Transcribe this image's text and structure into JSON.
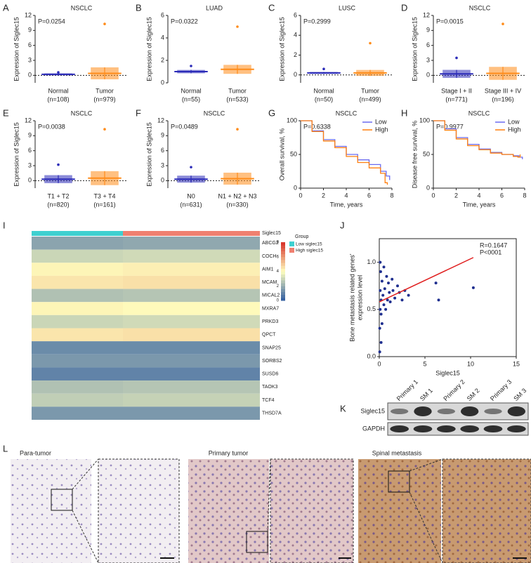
{
  "chart_data": [
    {
      "panel": "A",
      "type": "dotplot",
      "title": "NSCLC",
      "p_value": "P=0.0254",
      "ylabel": "Expression of Siglec15",
      "ylim": [
        -1.5,
        12
      ],
      "yticks": [
        0,
        3,
        6,
        9,
        12
      ],
      "refline": 0,
      "groups": [
        {
          "name": "Normal",
          "n_label": "(n=108)",
          "color": "#2b2bb8",
          "mean": 0.2,
          "sd": 0.2,
          "max": 0.6
        },
        {
          "name": "Tumor",
          "n_label": "(n=979)",
          "color": "#ff8c1a",
          "mean": 0.4,
          "sd": 1.2,
          "max": 10.3
        }
      ]
    },
    {
      "panel": "B",
      "type": "dotplot",
      "title": "LUAD",
      "p_value": "P=0.0322",
      "ylabel": "Expression of Siglec15",
      "ylim": [
        0,
        6
      ],
      "yticks": [
        0,
        2,
        4,
        6
      ],
      "groups": [
        {
          "name": "Normal",
          "n_label": "(n=55)",
          "color": "#2b2bb8",
          "mean": 1.0,
          "sd": 0.15,
          "max": 1.5
        },
        {
          "name": "Tumor",
          "n_label": "(n=533)",
          "color": "#ff8c1a",
          "mean": 1.2,
          "sd": 0.4,
          "max": 5.0
        }
      ]
    },
    {
      "panel": "C",
      "type": "dotplot",
      "title": "LUSC",
      "p_value": "P=0.2999",
      "ylabel": "Expression of Siglec15",
      "ylim": [
        -0.8,
        6
      ],
      "yticks": [
        0,
        2,
        4,
        6
      ],
      "refline": 0,
      "groups": [
        {
          "name": "Normal",
          "n_label": "(n=50)",
          "color": "#2b2bb8",
          "mean": 0.2,
          "sd": 0.1,
          "max": 0.6
        },
        {
          "name": "Tumor",
          "n_label": "(n=499)",
          "color": "#ff8c1a",
          "mean": 0.2,
          "sd": 0.3,
          "max": 3.2
        }
      ]
    },
    {
      "panel": "D",
      "type": "dotplot",
      "title": "NSCLC",
      "p_value": "P=0.0015",
      "ylabel": "Expression of Siglec15",
      "ylim": [
        -1.5,
        12
      ],
      "yticks": [
        0,
        3,
        6,
        9,
        12
      ],
      "refline": 0,
      "groups": [
        {
          "name": "Stage I + II",
          "n_label": "(n=771)",
          "color": "#2b2bb8",
          "mean": 0.3,
          "sd": 0.8,
          "max": 3.5
        },
        {
          "name": "Stage III + IV",
          "n_label": "(n=196)",
          "color": "#ff8c1a",
          "mean": 0.4,
          "sd": 1.3,
          "max": 10.3
        }
      ]
    },
    {
      "panel": "E",
      "type": "dotplot",
      "title": "NSCLC",
      "p_value": "P=0.0038",
      "ylabel": "Expression of Siglec15",
      "ylim": [
        -1.5,
        12
      ],
      "yticks": [
        0,
        3,
        6,
        9,
        12
      ],
      "refline": 0,
      "groups": [
        {
          "name": "T1 + T2",
          "n_label": "(n=820)",
          "color": "#2b2bb8",
          "mean": 0.3,
          "sd": 0.8,
          "max": 3.2
        },
        {
          "name": "T3 + T4",
          "n_label": "(n=161)",
          "color": "#ff8c1a",
          "mean": 0.5,
          "sd": 1.4,
          "max": 10.3
        }
      ]
    },
    {
      "panel": "F",
      "type": "dotplot",
      "title": "NSCLC",
      "p_value": "P=0.0489",
      "ylabel": "Expression of Siglec15",
      "ylim": [
        -1.5,
        12
      ],
      "yticks": [
        0,
        3,
        6,
        9,
        12
      ],
      "refline": 0,
      "groups": [
        {
          "name": "N0",
          "n_label": "(n=631)",
          "color": "#2b2bb8",
          "mean": 0.3,
          "sd": 0.7,
          "max": 2.7
        },
        {
          "name": "N1 + N2 + N3",
          "n_label": "(n=330)",
          "color": "#ff8c1a",
          "mean": 0.4,
          "sd": 1.2,
          "max": 10.3
        }
      ]
    },
    {
      "panel": "G",
      "type": "survival",
      "title": "NSCLC",
      "p_value": "P=0.6338",
      "ylabel": "Overall survival, %",
      "xlabel": "Time, years",
      "xlim": [
        0,
        8
      ],
      "xticks": [
        0,
        2,
        4,
        6,
        8
      ],
      "ylim": [
        0,
        100
      ],
      "yticks": [
        0,
        50,
        100
      ],
      "series": [
        {
          "name": "Low",
          "color": "#6b6bf0",
          "x": [
            0,
            1,
            2,
            3,
            4,
            5,
            6,
            7,
            7.5,
            7.8
          ],
          "values": [
            100,
            85,
            72,
            62,
            50,
            42,
            35,
            25,
            18,
            12
          ]
        },
        {
          "name": "High",
          "color": "#ff7f0e",
          "x": [
            0,
            1,
            2,
            3,
            4,
            5,
            6,
            7,
            7.4,
            7.6
          ],
          "values": [
            100,
            84,
            70,
            60,
            47,
            38,
            30,
            22,
            8,
            5
          ]
        }
      ]
    },
    {
      "panel": "H",
      "type": "survival",
      "title": "NSCLC",
      "p_value": "P=0.9977",
      "ylabel": "Disease free survival, %",
      "xlabel": "Time, years",
      "xlim": [
        0,
        8
      ],
      "xticks": [
        0,
        2,
        4,
        6,
        8
      ],
      "ylim": [
        0,
        100
      ],
      "yticks": [
        0,
        50,
        100
      ],
      "series": [
        {
          "name": "Low",
          "color": "#6b6bf0",
          "x": [
            0,
            1,
            2,
            3,
            4,
            5,
            6,
            7,
            7.5,
            7.8
          ],
          "values": [
            100,
            88,
            75,
            65,
            58,
            53,
            50,
            48,
            46,
            43
          ]
        },
        {
          "name": "High",
          "color": "#ff7f0e",
          "x": [
            0,
            1,
            2,
            3,
            4,
            5,
            6,
            7,
            7.4,
            7.6
          ],
          "values": [
            100,
            86,
            73,
            63,
            57,
            52,
            50,
            47,
            46,
            50
          ]
        }
      ]
    },
    {
      "panel": "I",
      "type": "heatmap",
      "annotation_label": "Siglec15",
      "legend_title": "Group",
      "clim": [
        0,
        8
      ],
      "cticks": [
        0,
        2,
        4,
        6,
        8
      ],
      "groups": [
        {
          "name": "Low siglec15",
          "color": "#3fd0d0"
        },
        {
          "name": "High siglec15",
          "color": "#f08070"
        }
      ],
      "rows": [
        "ABCG2",
        "COCH",
        "AIM1",
        "MCAM",
        "MICAL2",
        "MXRA7",
        "PRKD3",
        "QPCT",
        "SNAP25",
        "SORBS2",
        "SUSD6",
        "TAOK3",
        "TCF4",
        "THSD7A"
      ],
      "values": [
        [
          1.8,
          1.9
        ],
        [
          3.0,
          3.1
        ],
        [
          4.2,
          4.3
        ],
        [
          4.5,
          4.6
        ],
        [
          2.5,
          2.6
        ],
        [
          4.2,
          4.1
        ],
        [
          3.0,
          3.1
        ],
        [
          4.5,
          4.6
        ],
        [
          1.2,
          1.2
        ],
        [
          1.5,
          1.5
        ],
        [
          1.0,
          1.0
        ],
        [
          2.5,
          2.6
        ],
        [
          2.8,
          2.9
        ],
        [
          1.5,
          1.5
        ]
      ]
    },
    {
      "panel": "J",
      "type": "scatter",
      "xlabel": "Siglec15",
      "ylabel": [
        "Bone metastasis related genes'",
        "expression level"
      ],
      "annotations": [
        "R=0.1647",
        "P<0001"
      ],
      "xlim": [
        0,
        15
      ],
      "xticks": [
        0,
        5,
        10,
        15
      ],
      "ylim": [
        0,
        1.25
      ],
      "yticks": [
        {
          "value": 0,
          "label": "0.0"
        },
        0.5,
        {
          "value": 1,
          "label": "1.0"
        }
      ],
      "color": "#1f2f8f",
      "fit_color": "#e02020",
      "fit": {
        "x": [
          0,
          10.3
        ],
        "values": [
          0.58,
          1.05
        ]
      },
      "x": [
        0.05,
        0.1,
        0.1,
        0.15,
        0.2,
        0.2,
        0.3,
        0.3,
        0.4,
        0.5,
        0.5,
        0.6,
        0.7,
        0.8,
        0.9,
        1.0,
        1.1,
        1.2,
        1.4,
        1.5,
        1.7,
        2.0,
        2.2,
        2.5,
        2.8,
        3.2,
        6.2,
        6.5,
        10.3,
        0.05,
        0.1,
        0.2
      ],
      "values": [
        0.3,
        0.5,
        0.7,
        0.9,
        0.6,
        0.45,
        0.8,
        0.35,
        0.65,
        0.55,
        0.95,
        0.72,
        0.5,
        0.85,
        0.6,
        0.78,
        0.68,
        0.58,
        0.82,
        0.7,
        0.62,
        0.75,
        0.68,
        0.6,
        0.7,
        0.65,
        0.78,
        0.6,
        0.73,
        0.05,
        1.0,
        0.15
      ]
    }
  ],
  "blot": {
    "panel": "K",
    "lanes": [
      "Primary 1",
      "SM 1",
      "Primary 2",
      "SM 2",
      "Primary 3",
      "SM 3"
    ],
    "rows": [
      "Siglec15",
      "GAPDH"
    ]
  },
  "histology": {
    "panel": "L",
    "labels": [
      "Para-tumor",
      "Primary tumor",
      "Spinal metastasis"
    ]
  }
}
